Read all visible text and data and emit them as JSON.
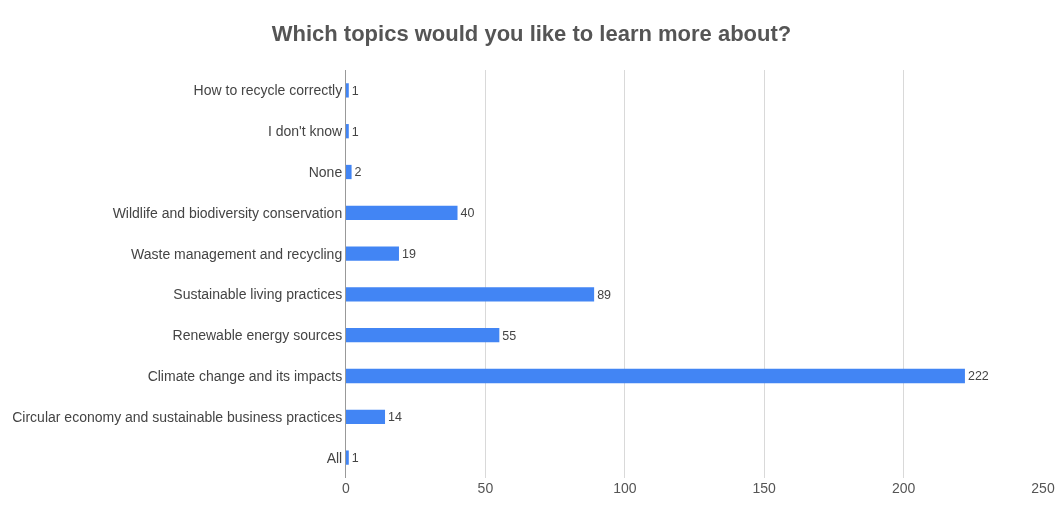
{
  "chart_data": {
    "type": "bar",
    "orientation": "horizontal",
    "title": "Which topics would you like to learn more about?",
    "categories": [
      "How to recycle correctly",
      "I don't know",
      "None",
      "Wildlife and biodiversity conservation",
      "Waste management and recycling",
      "Sustainable living practices",
      "Renewable energy sources",
      "Climate change and its impacts",
      "Circular economy and sustainable business practices",
      "All"
    ],
    "values": [
      1,
      1,
      2,
      40,
      19,
      89,
      55,
      222,
      14,
      1
    ],
    "color": "#4285f4",
    "xlim": [
      0,
      250
    ],
    "xticks": [
      0,
      50,
      100,
      150,
      200,
      250
    ],
    "grid": "x",
    "data_labels": true
  }
}
